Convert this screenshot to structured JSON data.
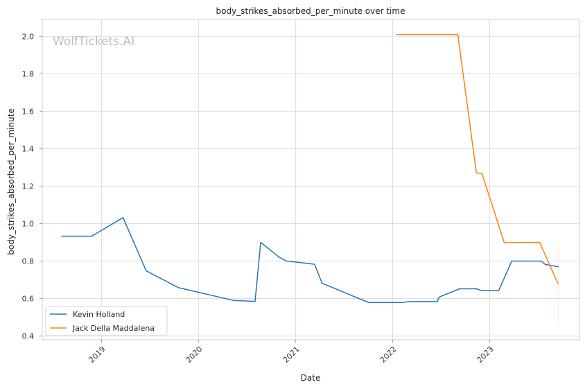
{
  "chart_data": {
    "type": "line",
    "title": "body_strikes_absorbed_per_minute over time",
    "xlabel": "Date",
    "ylabel": "body_strikes_absorbed_per_minute",
    "watermark": "WolfTickets.AI",
    "x_ticks": [
      "2019",
      "2020",
      "2021",
      "2022",
      "2023"
    ],
    "y_ticks": [
      "0.4",
      "0.6",
      "0.8",
      "1.0",
      "1.2",
      "1.4",
      "1.6",
      "1.8",
      "2.0"
    ],
    "xlim": [
      "2018-05-23",
      "2023-12-05"
    ],
    "ylim": [
      0.38,
      2.09
    ],
    "grid": true,
    "legend_position": "bottom-left",
    "series": [
      {
        "name": "Kevin Holland",
        "color": "#1f77b4",
        "points": [
          [
            "2018-08-04",
            0.933
          ],
          [
            "2018-11-25",
            0.933
          ],
          [
            "2019-03-23",
            1.032
          ],
          [
            "2019-06-18",
            0.748
          ],
          [
            "2019-10-18",
            0.658
          ],
          [
            "2020-05-13",
            0.59
          ],
          [
            "2020-08-01",
            0.585
          ],
          [
            "2020-08-22",
            0.9
          ],
          [
            "2020-10-31",
            0.82
          ],
          [
            "2020-11-28",
            0.8
          ],
          [
            "2021-01-01",
            0.795
          ],
          [
            "2021-03-13",
            0.783
          ],
          [
            "2021-04-10",
            0.682
          ],
          [
            "2021-10-02",
            0.579
          ],
          [
            "2022-02-05",
            0.579
          ],
          [
            "2022-03-05",
            0.584
          ],
          [
            "2022-06-18",
            0.584
          ],
          [
            "2022-06-25",
            0.608
          ],
          [
            "2022-09-10",
            0.652
          ],
          [
            "2022-11-12",
            0.652
          ],
          [
            "2022-12-03",
            0.642
          ],
          [
            "2023-02-04",
            0.642
          ],
          [
            "2023-03-25",
            0.8
          ],
          [
            "2023-07-15",
            0.8
          ],
          [
            "2023-07-29",
            0.782
          ],
          [
            "2023-09-16",
            0.77
          ]
        ]
      },
      {
        "name": "Jack Della Maddalena",
        "color": "#ff7f0e",
        "points": [
          [
            "2022-01-15",
            2.01
          ],
          [
            "2022-09-03",
            2.01
          ],
          [
            "2022-11-12",
            1.27
          ],
          [
            "2022-12-03",
            1.268
          ],
          [
            "2023-02-25",
            0.898
          ],
          [
            "2023-07-08",
            0.9
          ],
          [
            "2023-09-16",
            0.678
          ]
        ]
      }
    ]
  }
}
